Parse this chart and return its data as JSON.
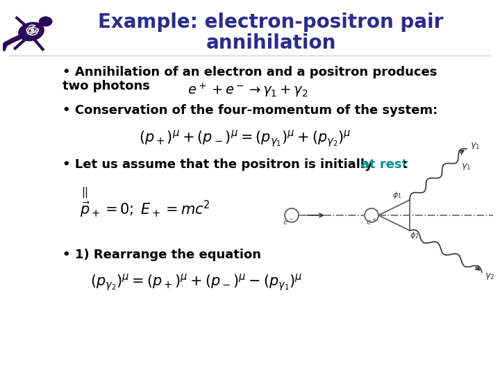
{
  "title_line1": "Example: electron-positron pair",
  "title_line2": "annihilation",
  "title_color": "#2B2B8B",
  "title_fontsize": 20,
  "background_color": "#FFFFFF",
  "text_fontsize": 13,
  "formula_fontsize": 13,
  "text_color": "#000000",
  "teal_color": "#009090",
  "bullet1_text": "• Annihilation of an electron and a positron produces two photons",
  "bullet2_text": "• Conservation of the four-momentum of the system:",
  "bullet3_text_black": "• Let us assume that the positron is initially ",
  "bullet3_text_teal": "at rest",
  "bullet4_text": "• 1) Rearrange the equation"
}
